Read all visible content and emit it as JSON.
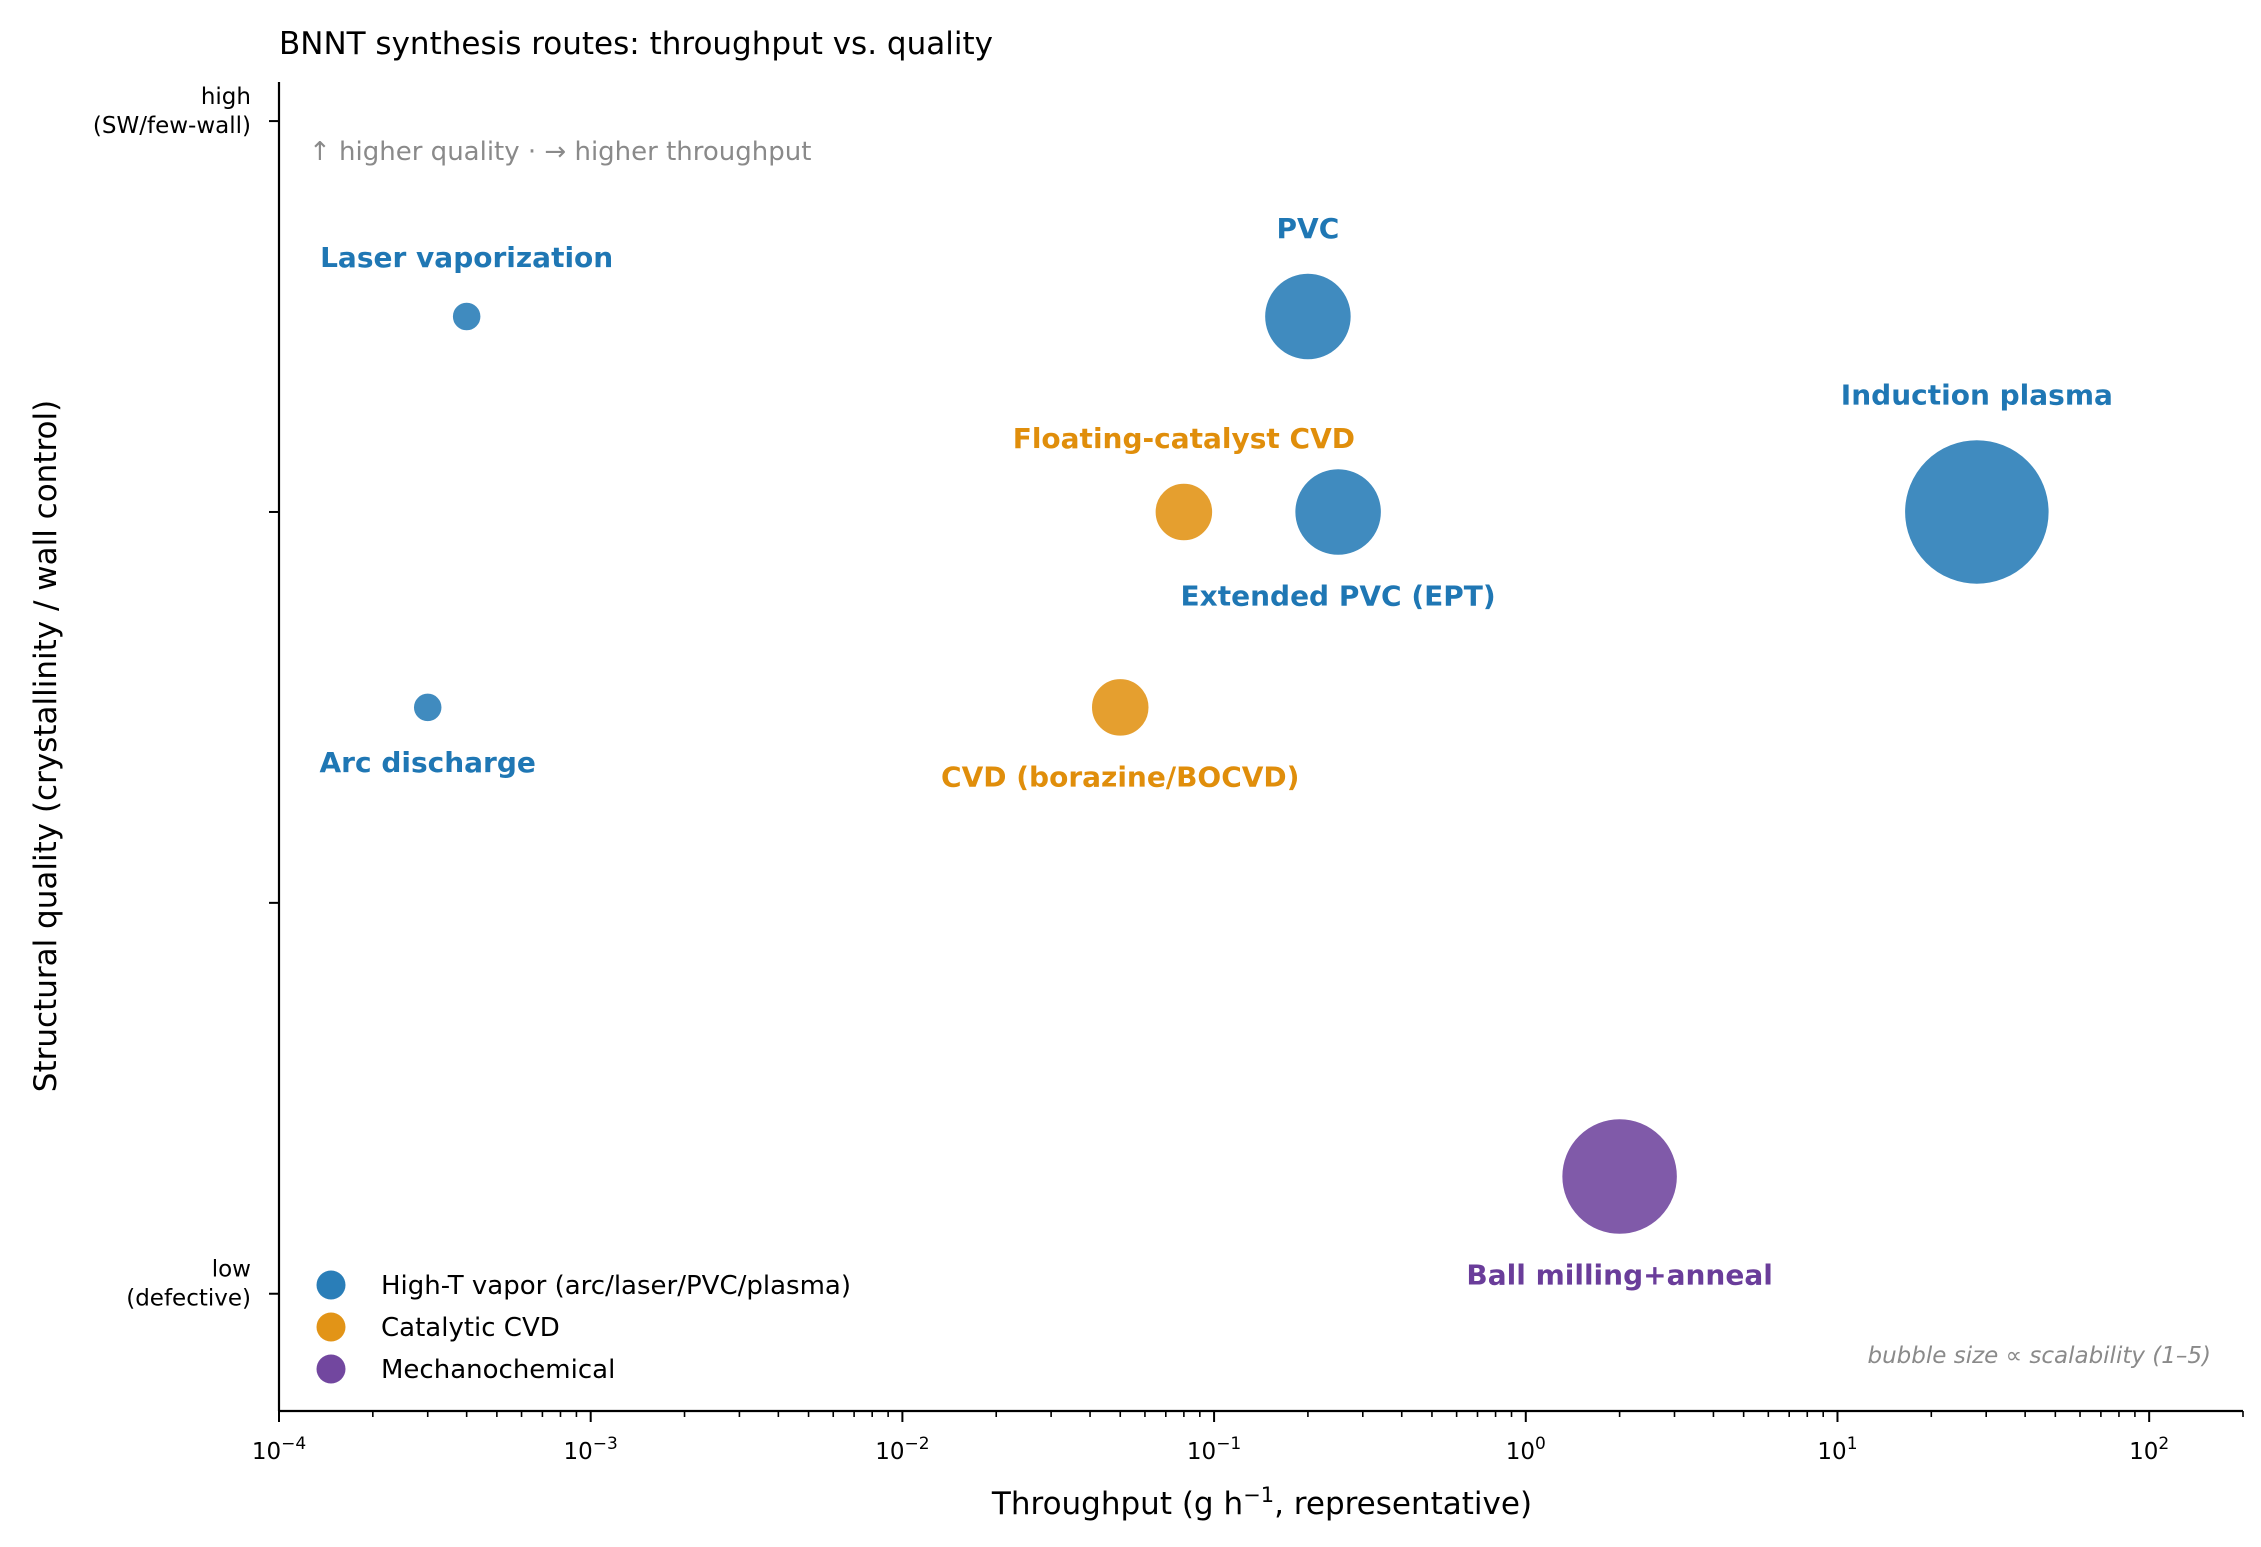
{
  "chart_data": {
    "type": "scatter",
    "title": "BNNT synthesis routes: throughput vs. quality",
    "xlabel": "Throughput  (g h",
    "xlabel_sup": "−1",
    "xlabel_tail": ", representative)",
    "ylabel": "Structural quality  (crystallinity / wall control)",
    "x_scale": "log",
    "xlim": [
      0.0001,
      200
    ],
    "x_ticks": [
      {
        "value": 0.0001,
        "base": "10",
        "exp": "−4"
      },
      {
        "value": 0.001,
        "base": "10",
        "exp": "−3"
      },
      {
        "value": 0.01,
        "base": "10",
        "exp": "−2"
      },
      {
        "value": 0.1,
        "base": "10",
        "exp": "−1"
      },
      {
        "value": 1,
        "base": "10",
        "exp": "0"
      },
      {
        "value": 10,
        "base": "10",
        "exp": "1"
      },
      {
        "value": 100,
        "base": "10",
        "exp": "2"
      }
    ],
    "ylim": [
      0.7,
      4.1
    ],
    "y_ticks": [
      {
        "value": 1.0,
        "line1": "low",
        "line2": "(defective)"
      },
      {
        "value": 2.0,
        "line1": "",
        "line2": ""
      },
      {
        "value": 3.0,
        "line1": "",
        "line2": ""
      },
      {
        "value": 4.0,
        "line1": "high",
        "line2": "(SW/few-wall)"
      }
    ],
    "grid": false,
    "legend_position": "bottom-left",
    "series": [
      {
        "name": "High-T vapor (arc/laser/PVC/plasma)",
        "color": "#1f77b4"
      },
      {
        "name": "Catalytic CVD",
        "color": "#e08e0b"
      },
      {
        "name": "Mechanochemical",
        "color": "#6a3d9a"
      }
    ],
    "points": [
      {
        "label": "Laser vaporization",
        "series": 0,
        "x": 0.0004,
        "y": 3.5,
        "scalability": 1,
        "label_pos": "above"
      },
      {
        "label": "Arc discharge",
        "series": 0,
        "x": 0.0003,
        "y": 2.5,
        "scalability": 1,
        "label_pos": "below"
      },
      {
        "label": "PVC",
        "series": 0,
        "x": 0.2,
        "y": 3.5,
        "scalability": 3,
        "label_pos": "above"
      },
      {
        "label": "Extended PVC (EPT)",
        "series": 0,
        "x": 0.25,
        "y": 3.0,
        "scalability": 3,
        "label_pos": "below"
      },
      {
        "label": "Induction plasma",
        "series": 0,
        "x": 28,
        "y": 3.0,
        "scalability": 5,
        "label_pos": "above"
      },
      {
        "label": "Floating-catalyst CVD",
        "series": 1,
        "x": 0.08,
        "y": 3.0,
        "scalability": 2,
        "label_pos": "above"
      },
      {
        "label": "CVD (borazine/BOCVD)",
        "series": 1,
        "x": 0.05,
        "y": 2.5,
        "scalability": 2,
        "label_pos": "below"
      },
      {
        "label": "Ball milling+anneal",
        "series": 2,
        "x": 2,
        "y": 1.3,
        "scalability": 4,
        "label_pos": "below"
      }
    ],
    "annotations": {
      "direction_hint": "↑ higher quality  ·  → higher throughput",
      "size_note": "bubble size ∝ scalability (1–5)"
    }
  }
}
